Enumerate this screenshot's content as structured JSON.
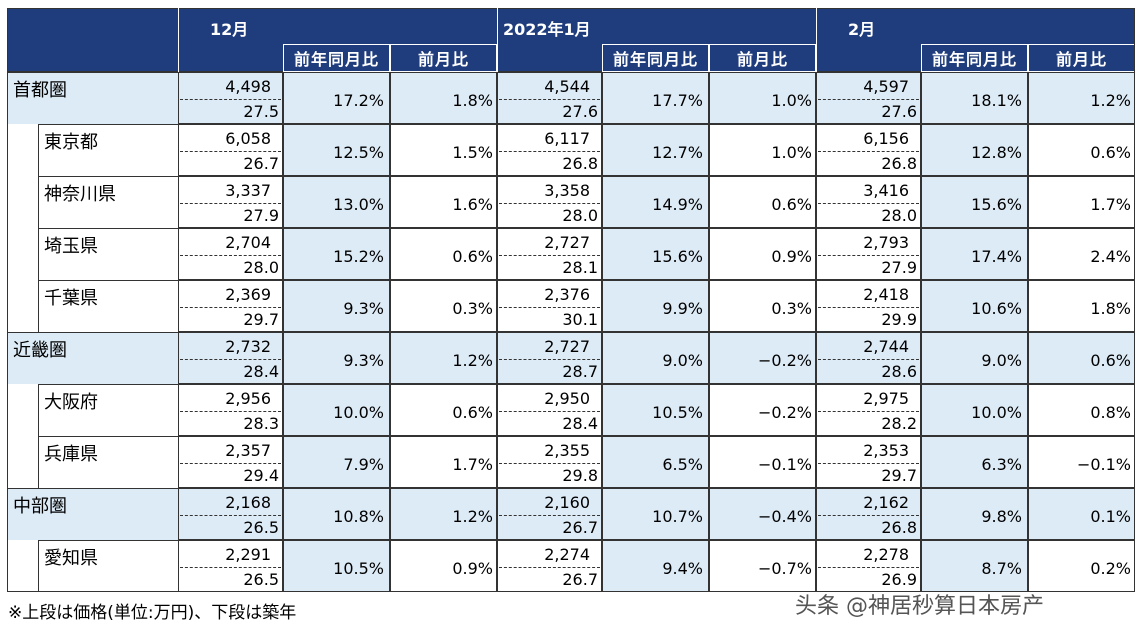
{
  "table": {
    "months": [
      "12月",
      "2022年1月",
      "2月"
    ],
    "subheaders": [
      "前年同月比",
      "前月比"
    ],
    "regions": [
      {
        "name": "首都圏",
        "months": [
          {
            "price": "4,498",
            "age": "27.5",
            "yoy": "17.2%",
            "mom": "1.8%"
          },
          {
            "price": "4,544",
            "age": "27.6",
            "yoy": "17.7%",
            "mom": "1.0%"
          },
          {
            "price": "4,597",
            "age": "27.6",
            "yoy": "18.1%",
            "mom": "1.2%"
          }
        ],
        "subregions": [
          {
            "name": "東京都",
            "months": [
              {
                "price": "6,058",
                "age": "26.7",
                "yoy": "12.5%",
                "mom": "1.5%"
              },
              {
                "price": "6,117",
                "age": "26.8",
                "yoy": "12.7%",
                "mom": "1.0%"
              },
              {
                "price": "6,156",
                "age": "26.8",
                "yoy": "12.8%",
                "mom": "0.6%"
              }
            ]
          },
          {
            "name": "神奈川県",
            "months": [
              {
                "price": "3,337",
                "age": "27.9",
                "yoy": "13.0%",
                "mom": "1.6%"
              },
              {
                "price": "3,358",
                "age": "28.0",
                "yoy": "14.9%",
                "mom": "0.6%"
              },
              {
                "price": "3,416",
                "age": "28.0",
                "yoy": "15.6%",
                "mom": "1.7%"
              }
            ]
          },
          {
            "name": "埼玉県",
            "months": [
              {
                "price": "2,704",
                "age": "28.0",
                "yoy": "15.2%",
                "mom": "0.6%"
              },
              {
                "price": "2,727",
                "age": "28.1",
                "yoy": "15.6%",
                "mom": "0.9%"
              },
              {
                "price": "2,793",
                "age": "27.9",
                "yoy": "17.4%",
                "mom": "2.4%"
              }
            ]
          },
          {
            "name": "千葉県",
            "months": [
              {
                "price": "2,369",
                "age": "29.7",
                "yoy": "9.3%",
                "mom": "0.3%"
              },
              {
                "price": "2,376",
                "age": "30.1",
                "yoy": "9.9%",
                "mom": "0.3%"
              },
              {
                "price": "2,418",
                "age": "29.9",
                "yoy": "10.6%",
                "mom": "1.8%"
              }
            ]
          }
        ]
      },
      {
        "name": "近畿圏",
        "months": [
          {
            "price": "2,732",
            "age": "28.4",
            "yoy": "9.3%",
            "mom": "1.2%"
          },
          {
            "price": "2,727",
            "age": "28.7",
            "yoy": "9.0%",
            "mom": "−0.2%"
          },
          {
            "price": "2,744",
            "age": "28.6",
            "yoy": "9.0%",
            "mom": "0.6%"
          }
        ],
        "subregions": [
          {
            "name": "大阪府",
            "months": [
              {
                "price": "2,956",
                "age": "28.3",
                "yoy": "10.0%",
                "mom": "0.6%"
              },
              {
                "price": "2,950",
                "age": "28.4",
                "yoy": "10.5%",
                "mom": "−0.2%"
              },
              {
                "price": "2,975",
                "age": "28.2",
                "yoy": "10.0%",
                "mom": "0.8%"
              }
            ]
          },
          {
            "name": "兵庫県",
            "months": [
              {
                "price": "2,357",
                "age": "29.4",
                "yoy": "7.9%",
                "mom": "1.7%"
              },
              {
                "price": "2,355",
                "age": "29.8",
                "yoy": "6.5%",
                "mom": "−0.1%"
              },
              {
                "price": "2,353",
                "age": "29.7",
                "yoy": "6.3%",
                "mom": "−0.1%"
              }
            ]
          }
        ]
      },
      {
        "name": "中部圏",
        "months": [
          {
            "price": "2,168",
            "age": "26.5",
            "yoy": "10.8%",
            "mom": "1.2%"
          },
          {
            "price": "2,160",
            "age": "26.7",
            "yoy": "10.7%",
            "mom": "−0.4%"
          },
          {
            "price": "2,162",
            "age": "26.8",
            "yoy": "9.8%",
            "mom": "0.1%"
          }
        ],
        "subregions": [
          {
            "name": "愛知県",
            "months": [
              {
                "price": "2,291",
                "age": "26.5",
                "yoy": "10.5%",
                "mom": "0.9%"
              },
              {
                "price": "2,274",
                "age": "26.7",
                "yoy": "9.4%",
                "mom": "−0.7%"
              },
              {
                "price": "2,278",
                "age": "26.9",
                "yoy": "8.7%",
                "mom": "0.2%"
              }
            ]
          }
        ]
      }
    ]
  },
  "footnote": "※上段は価格(単位:万円)、下段は築年",
  "watermark": "头条 @神居秒算日本房产"
}
